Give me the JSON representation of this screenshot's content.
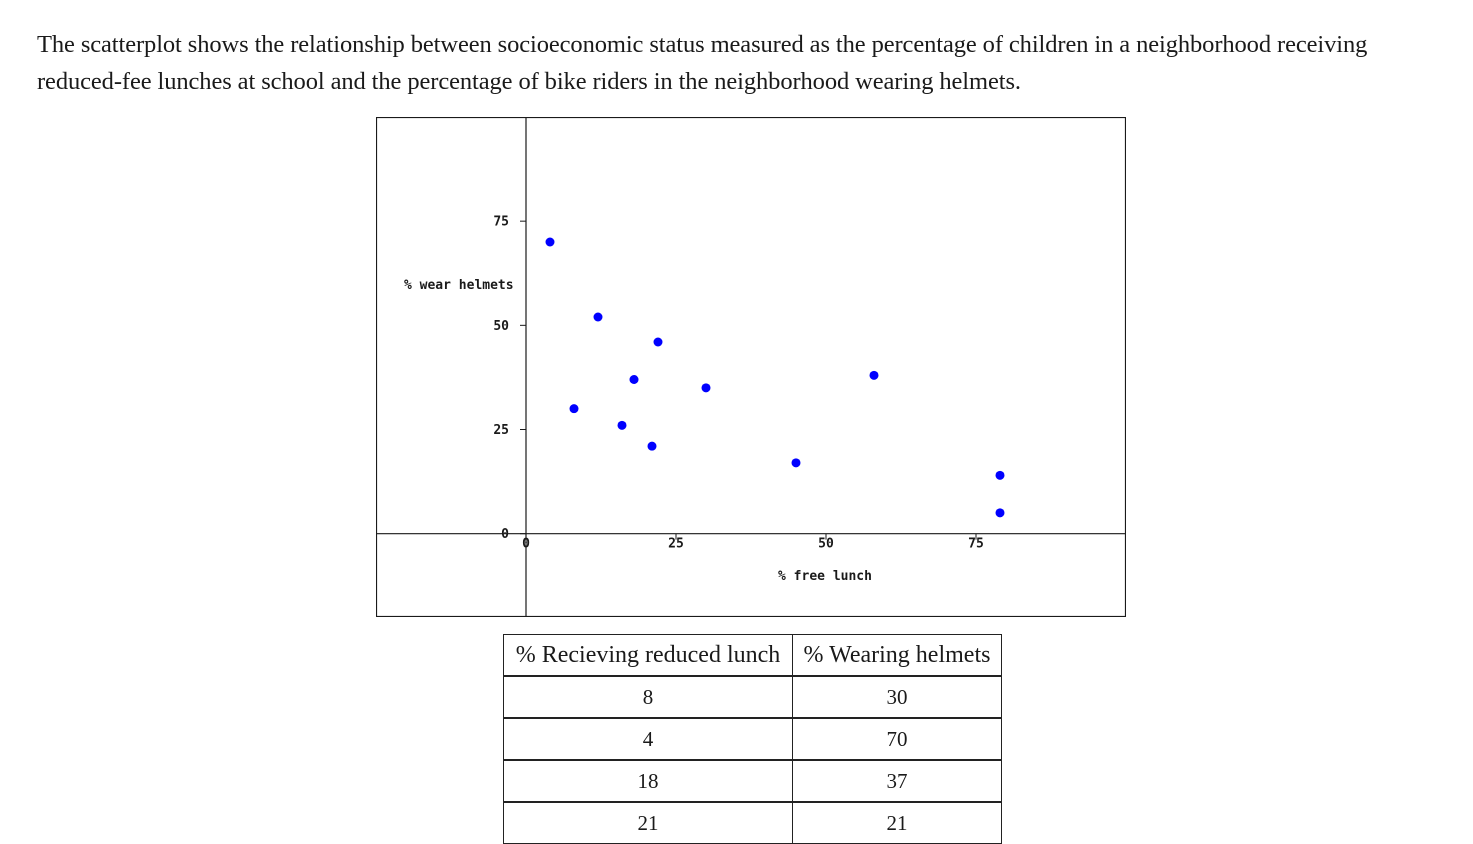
{
  "intro_text": "The scatterplot shows the relationship between socioeconomic status measured as the percentage of children in a neighborhood receiving reduced-fee lunches at school and the percentage of bike riders in the neighborhood wearing helmets.",
  "colors": {
    "point": "#0000ff",
    "axis": "#1a1a1a",
    "frame": "#1a1a1a"
  },
  "chart_data": {
    "type": "scatter",
    "xlabel": "% free lunch",
    "ylabel": "% wear helmets",
    "xlim": [
      -25,
      100
    ],
    "ylim": [
      -20,
      100
    ],
    "x_ticks": [
      0,
      25,
      50,
      75
    ],
    "y_ticks": [
      0,
      25,
      50,
      75
    ],
    "x_tick_labels": [
      "0",
      "25",
      "50",
      "75"
    ],
    "y_tick_labels": [
      "0",
      "25",
      "50",
      "75"
    ],
    "grid": false,
    "series": [
      {
        "x": [
          4,
          8,
          12,
          16,
          18,
          21,
          22,
          30,
          45,
          58,
          79,
          79
        ],
        "y": [
          70,
          30,
          52,
          26,
          37,
          21,
          46,
          35,
          17,
          38,
          14,
          5
        ]
      }
    ]
  },
  "table": {
    "headers": [
      "% Recieving reduced lunch",
      "% Wearing helmets"
    ],
    "rows": [
      [
        "8",
        "30"
      ],
      [
        "4",
        "70"
      ],
      [
        "18",
        "37"
      ],
      [
        "21",
        "21"
      ]
    ]
  }
}
